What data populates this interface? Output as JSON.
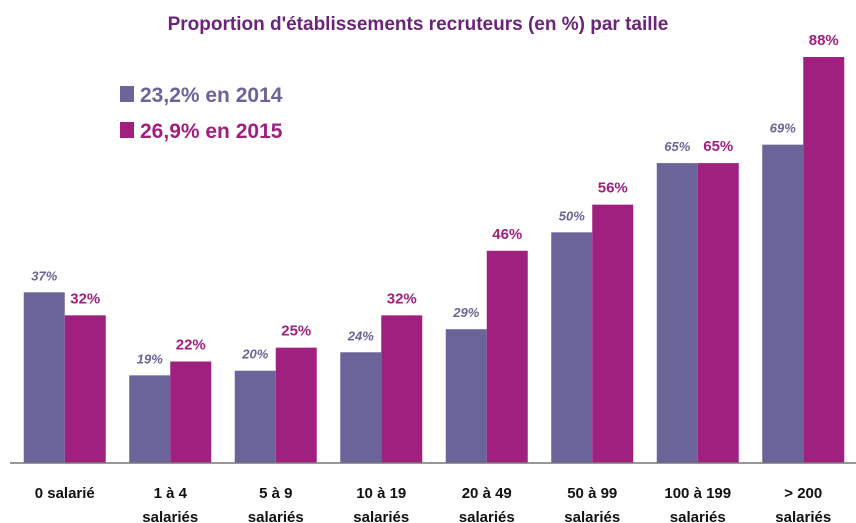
{
  "chart_data": {
    "type": "bar",
    "title": "Proportion d'établissements recruteurs (en %) par taille",
    "categories": [
      [
        "0 salarié"
      ],
      [
        "1 à 4",
        "salariés"
      ],
      [
        "5 à 9",
        "salariés"
      ],
      [
        "10 à 19",
        "salariés"
      ],
      [
        "20 à 49",
        "salariés"
      ],
      [
        "50 à 99",
        "salariés"
      ],
      [
        "100 à 199",
        "salariés"
      ],
      [
        "> 200",
        "salariés"
      ]
    ],
    "series": [
      {
        "name": "23,2% en 2014",
        "color": "#6b6499",
        "values": [
          37,
          19,
          20,
          24,
          29,
          50,
          65,
          69
        ],
        "value_labels": [
          "37%",
          "19%",
          "20%",
          "24%",
          "29%",
          "50%",
          "65%",
          "69%"
        ]
      },
      {
        "name": "26,9% en 2015",
        "color": "#a0207f",
        "values": [
          32,
          22,
          25,
          32,
          46,
          56,
          65,
          88
        ],
        "value_labels": [
          "32%",
          "22%",
          "25%",
          "32%",
          "46%",
          "56%",
          "65%",
          "88%"
        ]
      }
    ],
    "ylim": [
      0,
      88
    ]
  }
}
